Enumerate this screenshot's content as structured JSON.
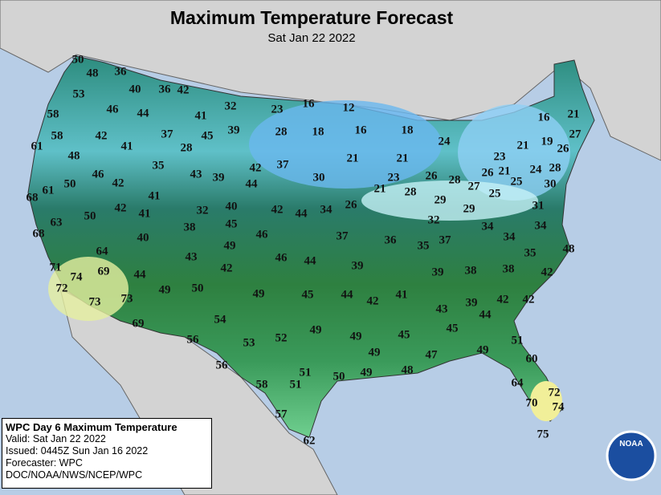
{
  "header": {
    "title": "Maximum Temperature Forecast",
    "subtitle": "Sat Jan 22 2022"
  },
  "temperatures": [
    50,
    48,
    36,
    40,
    36,
    42,
    53,
    46,
    44,
    41,
    32,
    23,
    16,
    12,
    58,
    58,
    42,
    41,
    37,
    28,
    45,
    39,
    28,
    18,
    16,
    18,
    16,
    21,
    24,
    61,
    48,
    21,
    21,
    21,
    19,
    27,
    26,
    23,
    35,
    46,
    42,
    43,
    39,
    42,
    37,
    30,
    23,
    26,
    28,
    27,
    26,
    21,
    25,
    24,
    28,
    30,
    50,
    44,
    21,
    28,
    29,
    25,
    68,
    61,
    41,
    42,
    41,
    32,
    40,
    42,
    44,
    34,
    26,
    29,
    31,
    34,
    50,
    63,
    38,
    45,
    32,
    34,
    68,
    40,
    46,
    37,
    36,
    35,
    37,
    34,
    49,
    64,
    43,
    46,
    44,
    39,
    39,
    38,
    38,
    35,
    48,
    71,
    69,
    42,
    42,
    74,
    72,
    44,
    49,
    50,
    49,
    45,
    44,
    42,
    41,
    43,
    39,
    42,
    42,
    44,
    73,
    73,
    69,
    54,
    56,
    53,
    52,
    49,
    49,
    45,
    45,
    51,
    49,
    47,
    49,
    60,
    56,
    51,
    51,
    50,
    49,
    48,
    58,
    64,
    72,
    70,
    74,
    57,
    62,
    75
  ],
  "info": {
    "title": "WPC Day 6 Maximum Temperature",
    "lines": [
      "Valid: Sat Jan 22 2022",
      "Issued: 0445Z Sun Jan 16 2022",
      "Forecaster: WPC",
      "DOC/NOAA/NWS/NCEP/WPC"
    ]
  },
  "logo": "NOAA"
}
